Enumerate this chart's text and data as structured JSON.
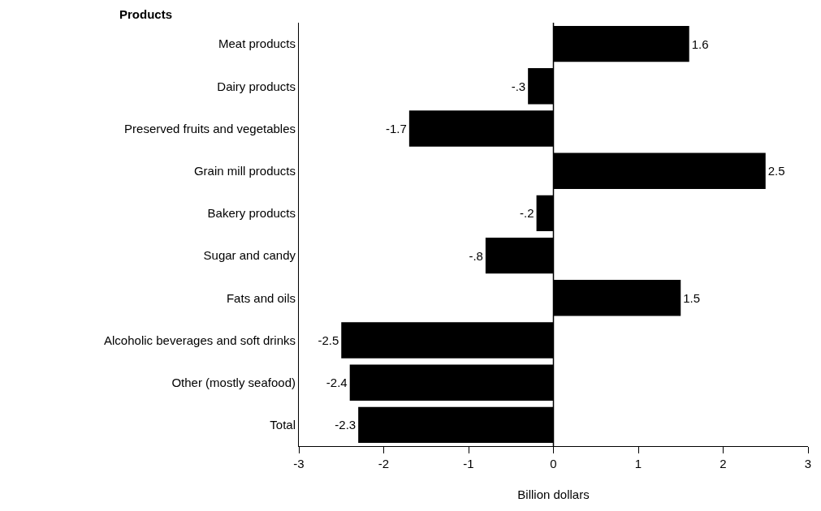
{
  "chart_data": {
    "type": "bar",
    "orientation": "horizontal",
    "ylabel": "Products",
    "xlabel": "Billion dollars",
    "categories": [
      "Meat products",
      "Dairy products",
      "Preserved fruits and vegetables",
      "Grain mill products",
      "Bakery products",
      "Sugar and candy",
      "Fats and oils",
      "Alcoholic beverages and soft drinks",
      "Other (mostly seafood)",
      "Total"
    ],
    "values": [
      1.6,
      -0.3,
      -1.7,
      2.5,
      -0.2,
      -0.8,
      1.5,
      -2.5,
      -2.4,
      -2.3
    ],
    "value_labels": [
      "1.6",
      "-.3",
      "-1.7",
      "2.5",
      "-.2",
      "-.8",
      "1.5",
      "-2.5",
      "-2.4",
      "-2.3"
    ],
    "color": "#000000",
    "xlim": [
      -3,
      3
    ],
    "xticks": [
      -3,
      -2,
      -1,
      0,
      1,
      2,
      3
    ],
    "ref_lines": [
      {
        "axis": "x",
        "value": 0,
        "color": "#000000"
      }
    ],
    "legend": false
  }
}
